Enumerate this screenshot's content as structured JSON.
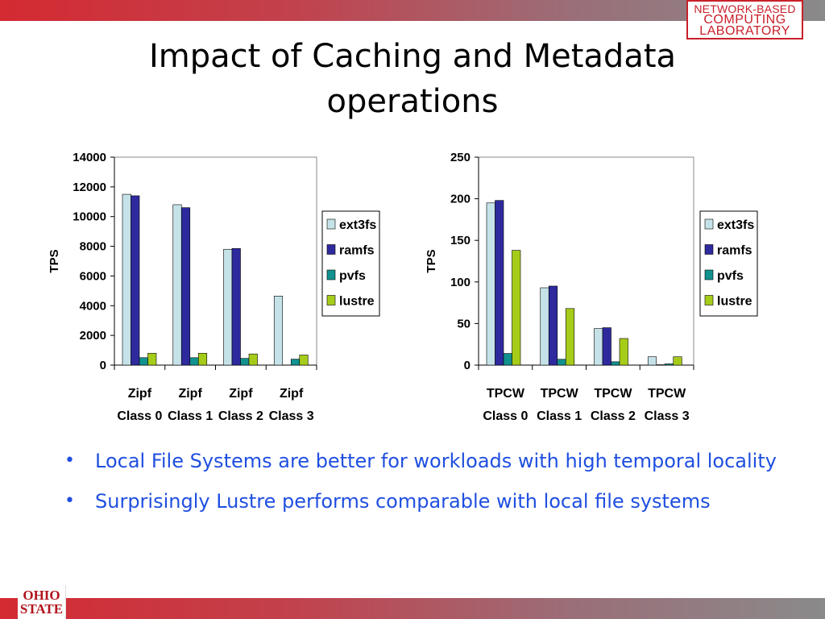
{
  "badge": {
    "line1": "NETWORK-BASED",
    "line2": "COMPUTING",
    "line3": "LABORATORY"
  },
  "title": {
    "line1": "Impact of Caching and Metadata",
    "line2": "operations"
  },
  "bullets": [
    "Local File Systems are better for workloads with high temporal locality",
    "Surprisingly Lustre performs comparable with local file systems"
  ],
  "logo": {
    "line1": "OHIO",
    "line2": "STATE"
  },
  "colors": {
    "ext3fs": "#c5e2e8",
    "ramfs": "#2e2a9e",
    "pvfs": "#11928f",
    "lustre": "#a6cc1a",
    "bullet_text": "#1f4fe0",
    "brand_red": "#c8202a"
  },
  "chart_data": [
    {
      "type": "bar",
      "title": "",
      "xlabel": "",
      "ylabel": "TPS",
      "ylim": [
        0,
        14000
      ],
      "yticks": [
        0,
        2000,
        4000,
        6000,
        8000,
        10000,
        12000,
        14000
      ],
      "categories": [
        [
          "Zipf",
          "Class 0"
        ],
        [
          "Zipf",
          "Class 1"
        ],
        [
          "Zipf",
          "Class 2"
        ],
        [
          "Zipf",
          "Class 3"
        ]
      ],
      "grid": false,
      "legend": "right",
      "series": [
        {
          "name": "ext3fs",
          "values": [
            11500,
            10800,
            7800,
            4650
          ]
        },
        {
          "name": "ramfs",
          "values": [
            11400,
            10600,
            7850,
            null
          ]
        },
        {
          "name": "pvfs",
          "values": [
            500,
            500,
            450,
            400
          ]
        },
        {
          "name": "lustre",
          "values": [
            800,
            800,
            750,
            680
          ]
        }
      ]
    },
    {
      "type": "bar",
      "title": "",
      "xlabel": "",
      "ylabel": "TPS",
      "ylim": [
        0,
        250
      ],
      "yticks": [
        0,
        50,
        100,
        150,
        200,
        250
      ],
      "categories": [
        [
          "TPCW",
          "Class 0"
        ],
        [
          "TPCW",
          "Class 1"
        ],
        [
          "TPCW",
          "Class 2"
        ],
        [
          "TPCW",
          "Class 3"
        ]
      ],
      "grid": false,
      "legend": "right",
      "series": [
        {
          "name": "ext3fs",
          "values": [
            195,
            93,
            44,
            10
          ]
        },
        {
          "name": "ramfs",
          "values": [
            198,
            95,
            45,
            0.5
          ]
        },
        {
          "name": "pvfs",
          "values": [
            14,
            7,
            4,
            1.5
          ]
        },
        {
          "name": "lustre",
          "values": [
            138,
            68,
            32,
            10
          ]
        }
      ]
    }
  ]
}
